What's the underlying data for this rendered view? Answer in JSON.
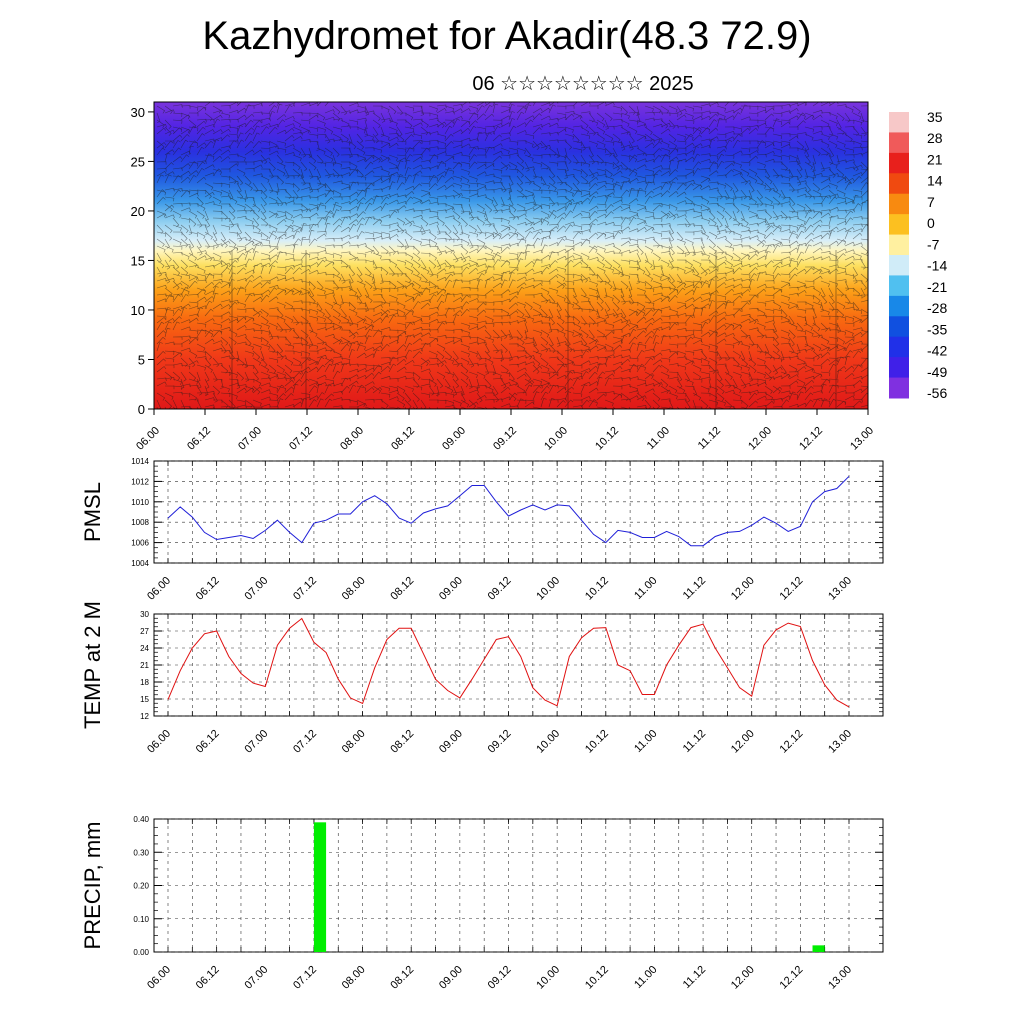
{
  "page": {
    "title": "Kazhydromet for Akadir(48.3 72.9)",
    "subtitle": "06 ☆☆☆☆☆☆☆☆ 2025"
  },
  "colors": {
    "pmsl_line": "#1f1fd8",
    "temp_line": "#e01010",
    "precip_bar": "#00ee00",
    "grid": "#333333"
  },
  "chart_data": [
    {
      "id": "cross-section",
      "type": "heatmap",
      "title": "",
      "ylabel": "",
      "xlabel": "",
      "x_tick_labels": [
        "06.00",
        "06.12",
        "07.00",
        "07.12",
        "08.00",
        "08.12",
        "09.00",
        "09.12",
        "10.00",
        "10.12",
        "11.00",
        "11.12",
        "12.00",
        "12.12",
        "13.00"
      ],
      "y_ticks": [
        0,
        5,
        10,
        15,
        20,
        25,
        30
      ],
      "ylim": [
        0,
        31
      ],
      "colorbar": {
        "labels": [
          "35",
          "28",
          "21",
          "14",
          "7",
          "0",
          "-7",
          "-14",
          "-21",
          "-28",
          "-35",
          "-42",
          "-49",
          "-56"
        ],
        "colors": [
          "#f7c8c8",
          "#f05a5a",
          "#e8201c",
          "#f04a10",
          "#f88a10",
          "#fcc020",
          "#fff0a0",
          "#d0ecf8",
          "#50c0f0",
          "#1888e8",
          "#1050e0",
          "#2030e8",
          "#4020e8",
          "#8030e0"
        ]
      },
      "color_layers": [
        {
          "height": 0,
          "color": "#e01818"
        },
        {
          "height": 5,
          "color": "#f03818"
        },
        {
          "height": 9,
          "color": "#f86810"
        },
        {
          "height": 12,
          "color": "#fca018"
        },
        {
          "height": 14.5,
          "color": "#fde060"
        },
        {
          "height": 16,
          "color": "#fff6c0"
        },
        {
          "height": 17,
          "color": "#d8eef8"
        },
        {
          "height": 19,
          "color": "#8ccdf0"
        },
        {
          "height": 21,
          "color": "#3a98e8"
        },
        {
          "height": 23.5,
          "color": "#1f58e0"
        },
        {
          "height": 26,
          "color": "#2a30e0"
        },
        {
          "height": 28.5,
          "color": "#5224e4"
        },
        {
          "height": 31,
          "color": "#7a34dc"
        }
      ]
    },
    {
      "id": "pmsl",
      "type": "line",
      "ylabel": "PMSL",
      "xlabel": "",
      "ylim": [
        1004,
        1014
      ],
      "y_ticks": [
        "1004",
        "1006",
        "1008",
        "1010",
        "1012",
        "1014"
      ],
      "x_tick_labels": [
        "06.00",
        "06.12",
        "07.00",
        "07.12",
        "08.00",
        "08.12",
        "09.00",
        "09.12",
        "10.00",
        "10.12",
        "11.00",
        "11.12",
        "12.00",
        "12.12",
        "13.00"
      ],
      "x_max_hours": 168,
      "series": [
        {
          "x": [
            0,
            3,
            6,
            9,
            12,
            15,
            18,
            21,
            24,
            27,
            30,
            33,
            36,
            39,
            42,
            45,
            48,
            51,
            54,
            57,
            60,
            63,
            66,
            69,
            72,
            75,
            78,
            81,
            84,
            87,
            90,
            93,
            96,
            99,
            102,
            105,
            108,
            111,
            114,
            117,
            120,
            123,
            126,
            129,
            132,
            135,
            138,
            141,
            144,
            147,
            150,
            153,
            156,
            159,
            162,
            165,
            168
          ],
          "values": [
            1008.4,
            1009.5,
            1008.5,
            1007.0,
            1006.3,
            1006.5,
            1006.7,
            1006.4,
            1007.2,
            1008.2,
            1007.0,
            1006.0,
            1007.9,
            1008.2,
            1008.8,
            1008.8,
            1010.0,
            1010.6,
            1009.8,
            1008.4,
            1007.9,
            1008.9,
            1009.3,
            1009.6,
            1010.6,
            1011.6,
            1011.6,
            1010.0,
            1008.6,
            1009.2,
            1009.7,
            1009.2,
            1009.7,
            1009.6,
            1008.2,
            1006.8,
            1006.0,
            1007.2,
            1007.0,
            1006.5,
            1006.5,
            1007.1,
            1006.6,
            1005.7,
            1005.7,
            1006.6,
            1007.0,
            1007.1,
            1007.7,
            1008.5,
            1007.9,
            1007.1,
            1007.6,
            1010.0,
            1011.0,
            1011.3,
            1012.5
          ]
        }
      ]
    },
    {
      "id": "temp",
      "type": "line",
      "ylabel": "TEMP at 2 M",
      "xlabel": "",
      "ylim": [
        12,
        30
      ],
      "y_ticks": [
        "12",
        "15",
        "18",
        "21",
        "24",
        "27",
        "30"
      ],
      "x_tick_labels": [
        "06.00",
        "06.12",
        "07.00",
        "07.12",
        "08.00",
        "08.12",
        "09.00",
        "09.12",
        "10.00",
        "10.12",
        "11.00",
        "11.12",
        "12.00",
        "12.12",
        "13.00"
      ],
      "x_max_hours": 168,
      "series": [
        {
          "x": [
            0,
            3,
            6,
            9,
            12,
            15,
            18,
            21,
            24,
            27,
            30,
            33,
            36,
            39,
            42,
            45,
            48,
            51,
            54,
            57,
            60,
            63,
            66,
            69,
            72,
            75,
            78,
            81,
            84,
            87,
            90,
            93,
            96,
            99,
            102,
            105,
            108,
            111,
            114,
            117,
            120,
            123,
            126,
            129,
            132,
            135,
            138,
            141,
            144,
            147,
            150,
            153,
            156,
            159,
            162,
            165,
            168
          ],
          "values": [
            14.9,
            20.0,
            24.0,
            26.5,
            27.0,
            22.5,
            19.5,
            17.8,
            17.2,
            24.5,
            27.5,
            29.2,
            25.0,
            23.2,
            18.5,
            15.2,
            14.2,
            20.5,
            25.5,
            27.5,
            27.5,
            23.0,
            18.5,
            16.5,
            15.2,
            18.5,
            22.0,
            25.5,
            26.0,
            22.5,
            17.0,
            14.8,
            13.8,
            22.5,
            25.8,
            27.5,
            27.6,
            21.0,
            20.0,
            15.8,
            15.8,
            21.0,
            24.5,
            27.6,
            28.2,
            24.0,
            20.5,
            17.0,
            15.5,
            24.5,
            27.2,
            28.4,
            27.8,
            21.8,
            17.5,
            14.8,
            13.6
          ]
        }
      ]
    },
    {
      "id": "precip",
      "type": "bar",
      "ylabel": "PRECIP, mm",
      "xlabel": "",
      "ylim": [
        0,
        0.4
      ],
      "y_ticks": [
        "0.00",
        "0.10",
        "0.20",
        "0.30",
        "0.40"
      ],
      "x_tick_labels": [
        "06.00",
        "06.12",
        "07.00",
        "07.12",
        "08.00",
        "08.12",
        "09.00",
        "09.12",
        "10.00",
        "10.12",
        "11.00",
        "11.12",
        "12.00",
        "12.12",
        "13.00"
      ],
      "x_max_hours": 168,
      "bars": [
        {
          "x_start": 36,
          "x_end": 39,
          "value": 0.39
        },
        {
          "x_start": 159,
          "x_end": 162,
          "value": 0.02
        }
      ]
    }
  ]
}
